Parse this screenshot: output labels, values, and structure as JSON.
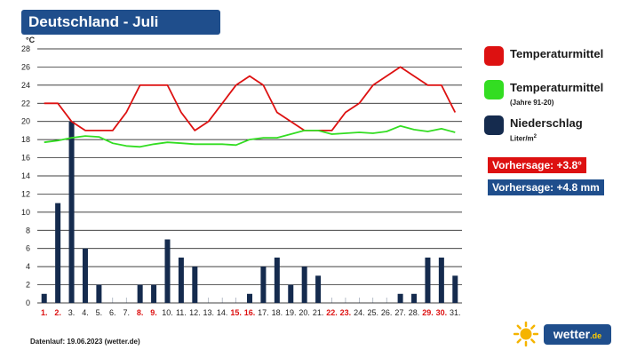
{
  "header": {
    "title": "Deutschland - Juli"
  },
  "chart_data": {
    "type": "bar",
    "ylabel": "°C",
    "ylim": [
      0,
      28
    ],
    "yticks": [
      0,
      2,
      4,
      6,
      8,
      10,
      12,
      14,
      16,
      18,
      20,
      22,
      24,
      26,
      28
    ],
    "grid": true,
    "legend_position": "right",
    "categories": [
      "1.",
      "2.",
      "3.",
      "4.",
      "5.",
      "6.",
      "7.",
      "8.",
      "9.",
      "10.",
      "11.",
      "12.",
      "13.",
      "14.",
      "15.",
      "16.",
      "17.",
      "18.",
      "19.",
      "20.",
      "21.",
      "22.",
      "23.",
      "24.",
      "25.",
      "26.",
      "27.",
      "28.",
      "29.",
      "30.",
      "31."
    ],
    "highlighted_categories": [
      "1.",
      "2.",
      "8.",
      "9.",
      "15.",
      "16.",
      "22.",
      "23.",
      "29.",
      "30."
    ],
    "series": [
      {
        "name": "Temperaturmittel",
        "kind": "line",
        "color": "#dd1111",
        "values": [
          22,
          22,
          20,
          19,
          19,
          19,
          21,
          24,
          24,
          24,
          21,
          19,
          20,
          22,
          24,
          25,
          24,
          21,
          20,
          19,
          19,
          19,
          21,
          22,
          24,
          25,
          26,
          25,
          24,
          24,
          21
        ]
      },
      {
        "name": "Temperaturmittel",
        "sublabel": "(Jahre 91-20)",
        "kind": "line",
        "color": "#33dd22",
        "values": [
          17.7,
          17.9,
          18.2,
          18.4,
          18.3,
          17.6,
          17.3,
          17.2,
          17.5,
          17.7,
          17.6,
          17.5,
          17.5,
          17.5,
          17.4,
          18.0,
          18.2,
          18.2,
          18.6,
          19.0,
          19.0,
          18.6,
          18.7,
          18.8,
          18.7,
          18.9,
          19.5,
          19.1,
          18.9,
          19.2,
          18.8
        ]
      },
      {
        "name": "Niederschlag",
        "sublabel": "Liter/m",
        "sublabel_sup": "2",
        "kind": "bar",
        "color": "#152b4e",
        "values": [
          1,
          11,
          20,
          6,
          2,
          0,
          0,
          2,
          2,
          7,
          5,
          4,
          0,
          0,
          0,
          1,
          4,
          5,
          2,
          4,
          3,
          0,
          0,
          0,
          0,
          0,
          1,
          1,
          5,
          5,
          3
        ]
      }
    ]
  },
  "forecasts": [
    {
      "label": "Vorhersage: +3.8°",
      "color": "#dd1111"
    },
    {
      "label": "Vorhersage: +4.8 mm",
      "color": "#1f4e8c"
    }
  ],
  "footer": {
    "text": "Datenlauf: 19.06.2023 (wetter.de)"
  },
  "logo": {
    "name": "wetter",
    "tld": ".de",
    "icon": "sun-icon"
  }
}
